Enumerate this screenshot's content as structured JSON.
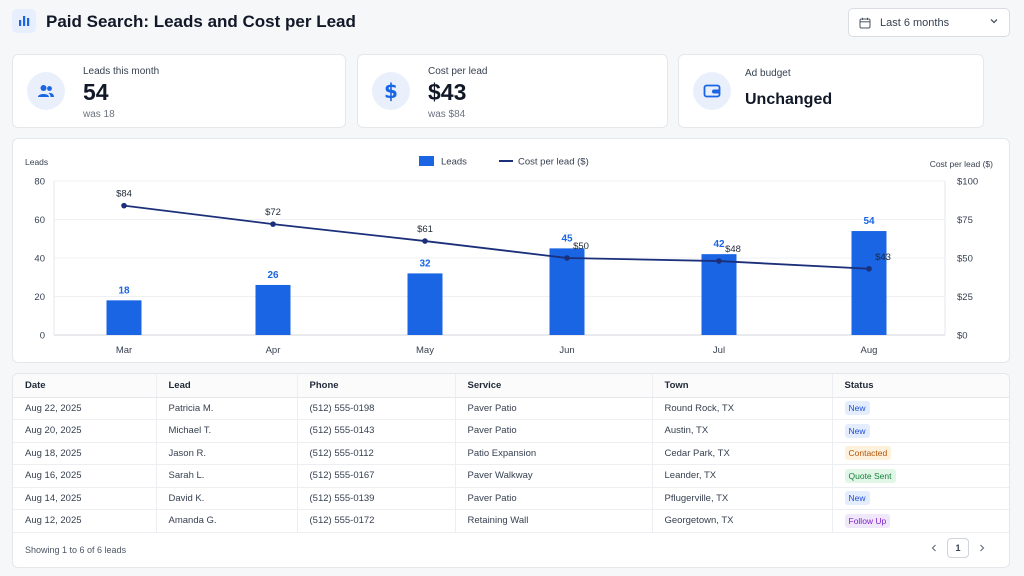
{
  "header": {
    "title": "Paid Search: Leads and Cost per Lead",
    "date_range": "Last 6 months"
  },
  "kpis": [
    {
      "label": "Leads this month",
      "value": "54",
      "sub": "was 18",
      "icon": "users-icon"
    },
    {
      "label": "Cost per lead",
      "value": "$43",
      "sub": "was $84",
      "icon": "dollar-icon"
    },
    {
      "label": "Ad budget",
      "value": "Unchanged",
      "icon": "wallet-icon"
    }
  ],
  "colors": {
    "accent": "#1a65e3",
    "line": "#1b2f7a",
    "grid": "#eef0f3"
  },
  "chart_data": {
    "type": "bar",
    "categories": [
      "Mar",
      "Apr",
      "May",
      "Jun",
      "Jul",
      "Aug"
    ],
    "series": [
      {
        "name": "Leads",
        "type": "bar",
        "axis": "left",
        "values": [
          18,
          26,
          32,
          45,
          42,
          54
        ],
        "labels": [
          "18",
          "26",
          "32",
          "45",
          "42",
          "54"
        ]
      },
      {
        "name": "Cost per lead ($)",
        "type": "line",
        "axis": "right",
        "values": [
          84,
          72,
          61,
          50,
          48,
          43
        ],
        "labels": [
          "$84",
          "$72",
          "$61",
          "$50",
          "$48",
          "$43"
        ]
      }
    ],
    "ylabel": "Leads",
    "ylabel_right": "Cost per lead ($)",
    "ylim": [
      0,
      80
    ],
    "ylim_right": [
      0,
      100
    ],
    "yticks": [
      "0",
      "20",
      "40",
      "60",
      "80"
    ],
    "yticks_right": [
      "$0",
      "$25",
      "$50",
      "$75",
      "$100"
    ],
    "grid": true,
    "legend": "top-center"
  },
  "table": {
    "columns": [
      "Date",
      "Lead",
      "Phone",
      "Service",
      "Town",
      "Status"
    ],
    "rows": [
      [
        "Aug 22, 2025",
        "Patricia M.",
        "(512) 555-0198",
        "Paver Patio",
        "Round Rock, TX",
        "New"
      ],
      [
        "Aug 20, 2025",
        "Michael T.",
        "(512) 555-0143",
        "Paver Patio",
        "Austin, TX",
        "New"
      ],
      [
        "Aug 18, 2025",
        "Jason R.",
        "(512) 555-0112",
        "Patio Expansion",
        "Cedar Park, TX",
        "Contacted"
      ],
      [
        "Aug 16, 2025",
        "Sarah L.",
        "(512) 555-0167",
        "Paver Walkway",
        "Leander, TX",
        "Quote Sent"
      ],
      [
        "Aug 14, 2025",
        "David K.",
        "(512) 555-0139",
        "Paver Patio",
        "Pflugerville, TX",
        "New"
      ],
      [
        "Aug 12, 2025",
        "Amanda G.",
        "(512) 555-0172",
        "Retaining Wall",
        "Georgetown, TX",
        "Follow Up"
      ]
    ],
    "footer": "Showing 1 to 6 of 6 leads",
    "page": "1"
  }
}
